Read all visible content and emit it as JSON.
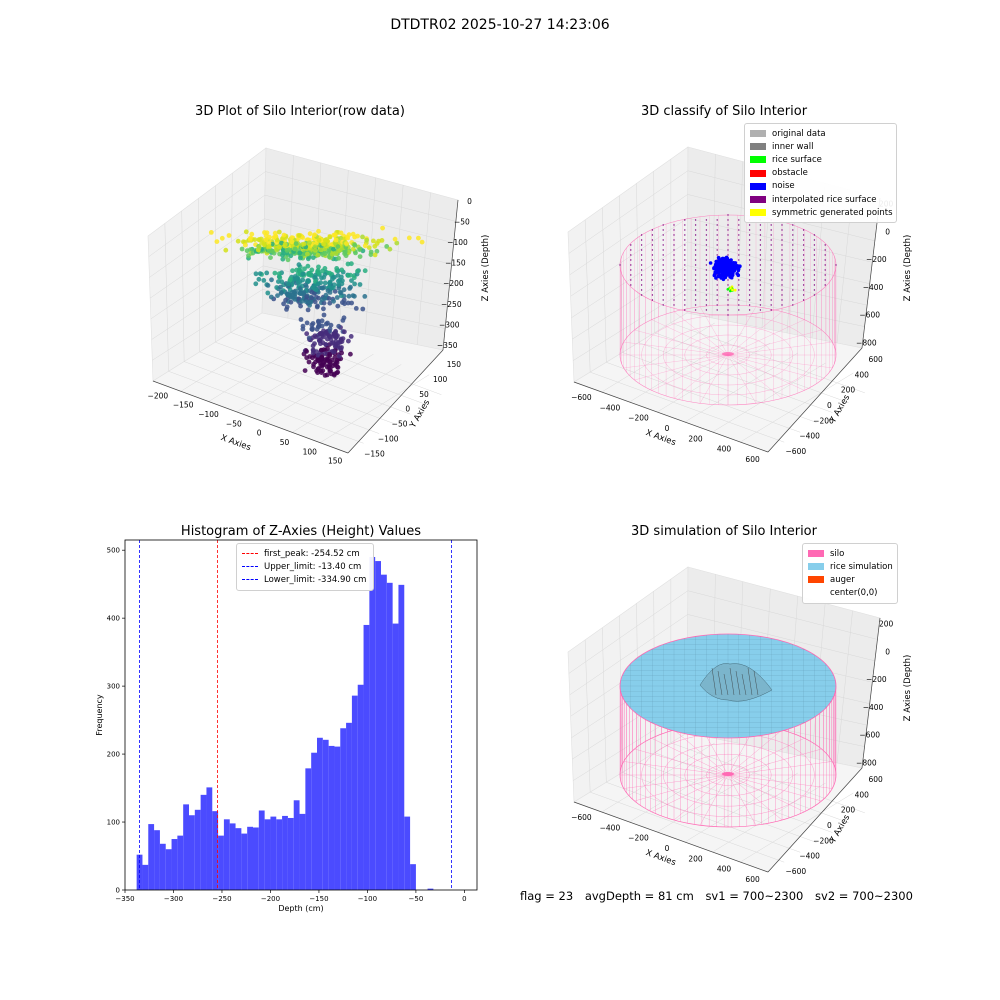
{
  "suptitle": "DTDTR02 2025-10-27 14:23:06",
  "footer": {
    "flag": "flag = 23",
    "avg": "avgDepth = 81 cm",
    "sv1": "sv1 = 700~2300",
    "sv2": "sv2 = 700~2300"
  },
  "chart_data": [
    {
      "type": "scatter",
      "title": "3D Plot of Silo Interior(row data)",
      "xlabel": "X Axies",
      "ylabel": "Y Axies",
      "zlabel": "Z Axies (Depth)",
      "x_ticks": [
        "−200",
        "−150",
        "−100",
        "−50",
        "0",
        "50",
        "100",
        "150"
      ],
      "y_ticks": [
        "−150",
        "−100",
        "−50",
        "0",
        "50",
        "100",
        "150"
      ],
      "z_ticks": [
        "0",
        "−50",
        "−100",
        "−150",
        "−200",
        "−250",
        "−300",
        "−350"
      ],
      "colormap": "viridis"
    },
    {
      "type": "scatter",
      "title": "3D classify of Silo Interior",
      "xlabel": "X Axies",
      "ylabel": "Y Axies",
      "zlabel": "Z Axies (Depth)",
      "x_ticks": [
        "−600",
        "−400",
        "−200",
        "0",
        "200",
        "400",
        "600"
      ],
      "y_ticks": [
        "−600",
        "−400",
        "−200",
        "0",
        "200",
        "400",
        "600"
      ],
      "z_ticks": [
        "200",
        "0",
        "−200",
        "−400",
        "−600",
        "−800"
      ],
      "legend": [
        {
          "label": "original data",
          "color": "#b0b0b0"
        },
        {
          "label": "inner wall",
          "color": "#808080"
        },
        {
          "label": "rice surface",
          "color": "#00ff00"
        },
        {
          "label": "obstacle",
          "color": "#ff0000"
        },
        {
          "label": "noise",
          "color": "#0000ff"
        },
        {
          "label": "interpolated rice surface",
          "color": "#800080"
        },
        {
          "label": "symmetric generated points",
          "color": "#ffff00"
        }
      ]
    },
    {
      "type": "bar",
      "title": "Histogram of Z-Axies (Height) Values",
      "xlabel": "Depth (cm)",
      "ylabel": "Frequency",
      "xlim": [
        -350,
        13
      ],
      "ylim": [
        0,
        515
      ],
      "x_ticks": [
        "−350",
        "−300",
        "−250",
        "−200",
        "−150",
        "−100",
        "−50",
        "0"
      ],
      "y_ticks": [
        "0",
        "100",
        "200",
        "300",
        "400",
        "500"
      ],
      "bar_color": "#4b4bff",
      "bin_width": 6.0,
      "bin_start": -338.0,
      "values": [
        52,
        37,
        97,
        88,
        68,
        60,
        75,
        80,
        126,
        110,
        118,
        140,
        151,
        116,
        80,
        104,
        98,
        91,
        83,
        93,
        92,
        117,
        104,
        108,
        104,
        109,
        106,
        132,
        112,
        179,
        202,
        224,
        221,
        212,
        211,
        238,
        246,
        286,
        302,
        390,
        490,
        484,
        464,
        452,
        392,
        449,
        108,
        38,
        0,
        0,
        2
      ],
      "vlines": [
        {
          "label": "first_peak: -254.52 cm",
          "x": -254.52,
          "color": "#ff0000"
        },
        {
          "label": "Upper_limit: -13.40 cm",
          "x": -13.4,
          "color": "#0000ff"
        },
        {
          "label": "Lower_limit: -334.90 cm",
          "x": -334.9,
          "color": "#0000ff"
        }
      ]
    },
    {
      "type": "surface",
      "title": "3D simulation of Silo Interior",
      "xlabel": "X Axies",
      "ylabel": "Y Axies",
      "zlabel": "Z Axies (Depth)",
      "x_ticks": [
        "−600",
        "−400",
        "−200",
        "0",
        "200",
        "400",
        "600"
      ],
      "y_ticks": [
        "−600",
        "−400",
        "−200",
        "0",
        "200",
        "400",
        "600"
      ],
      "z_ticks": [
        "200",
        "0",
        "−200",
        "−400",
        "−600",
        "−800"
      ],
      "legend": [
        {
          "label": "silo",
          "color": "#ff69b4"
        },
        {
          "label": "rice simulation",
          "color": "#87ceeb"
        },
        {
          "label": "auger",
          "color": "#ff4500"
        },
        {
          "label": "center(0,0)",
          "color": "#ffffff"
        }
      ]
    }
  ]
}
